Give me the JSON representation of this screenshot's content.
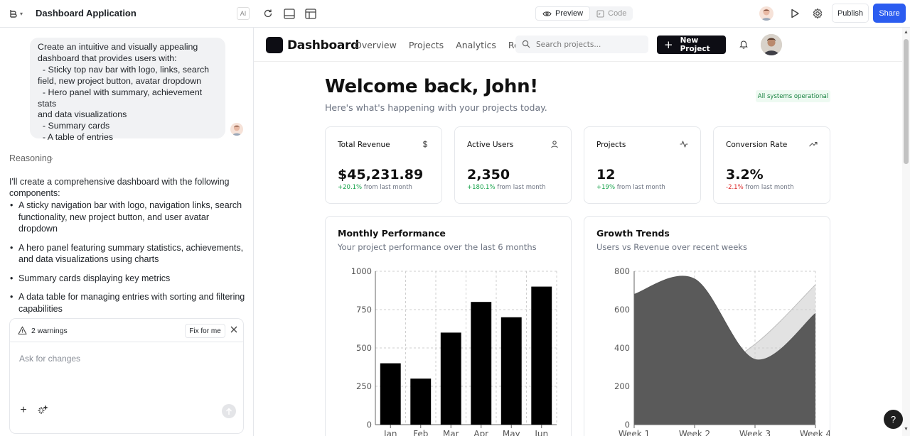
{
  "topbar": {
    "project_title": "Dashboard Application",
    "ai_label": "AI",
    "tabs": [
      {
        "label": "Preview",
        "icon": "eye-icon",
        "active": true
      },
      {
        "label": "Code",
        "icon": "code-icon",
        "active": false
      }
    ],
    "publish_label": "Publish",
    "share_label": "Share",
    "accent": "#2b5cf0"
  },
  "chat": {
    "user_message": "Create an intuitive and visually appealing\ndashboard that provides users with:\n  - Sticky top nav bar with logo, links, search\nfield, new project button, avatar dropdown\n  - Hero panel with summary, achievement stats\nand data visualizations\n  - Summary cards\n  - A table of entries",
    "reasoning_label": "Reasoning",
    "intro": "I'll create a comprehensive dashboard with the following components:",
    "bullets": [
      "A sticky navigation bar with logo, navigation links, search functionality, new project button, and user avatar dropdown",
      "A hero panel featuring summary statistics, achievements, and data visualizations using charts",
      "Summary cards displaying key metrics",
      "A data table for managing entries with sorting and filtering capabilities"
    ],
    "warnings_label": "2 warnings",
    "fix_label": "Fix for me",
    "input_placeholder": "Ask for changes"
  },
  "preview": {
    "brand": "Dashboard",
    "nav_links": [
      "Overview",
      "Projects",
      "Analytics",
      "Reports"
    ],
    "search_placeholder": "Search projects...",
    "new_project_label": "New Project",
    "welcome": "Welcome back, John!",
    "welcome_sub": "Here's what's happening with your projects today.",
    "status": "All systems operational",
    "cards": [
      {
        "title": "Total Revenue",
        "icon": "dollar-icon",
        "value": "$45,231.89",
        "change": "+20.1%",
        "change_suffix": "from last month"
      },
      {
        "title": "Active Users",
        "icon": "users-icon",
        "value": "2,350",
        "change": "+180.1%",
        "change_suffix": "from last month"
      },
      {
        "title": "Projects",
        "icon": "activity-icon",
        "value": "12",
        "change": "+19%",
        "change_suffix": "from last month"
      },
      {
        "title": "Conversion Rate",
        "icon": "trending-up-icon",
        "value": "3.2%",
        "change": "-2.1%",
        "change_suffix": "from last month"
      }
    ],
    "monthly": {
      "title": "Monthly Performance",
      "subtitle": "Your project performance over the last 6 months"
    },
    "growth": {
      "title": "Growth Trends",
      "subtitle": "Users vs Revenue over recent weeks"
    }
  },
  "chart_data": [
    {
      "type": "bar",
      "title": "Monthly Performance",
      "categories": [
        "Jan",
        "Feb",
        "Mar",
        "Apr",
        "May",
        "Jun"
      ],
      "values": [
        400,
        300,
        600,
        800,
        700,
        900
      ],
      "ylim": [
        0,
        1000
      ],
      "yticks": [
        0,
        250,
        500,
        750,
        1000
      ],
      "grid": true,
      "color": "#000000"
    },
    {
      "type": "area",
      "title": "Growth Trends",
      "categories": [
        "Week 1",
        "Week 2",
        "Week 3",
        "Week 4"
      ],
      "series": [
        {
          "values": [
            400,
            250,
            420,
            730
          ]
        },
        {
          "values": [
            680,
            760,
            340,
            580
          ]
        }
      ],
      "ylim": [
        0,
        800
      ],
      "yticks": [
        0,
        200,
        400,
        600,
        800
      ],
      "grid": true,
      "colors": [
        "#cfcfcf",
        "#5a5a5a"
      ]
    }
  ]
}
